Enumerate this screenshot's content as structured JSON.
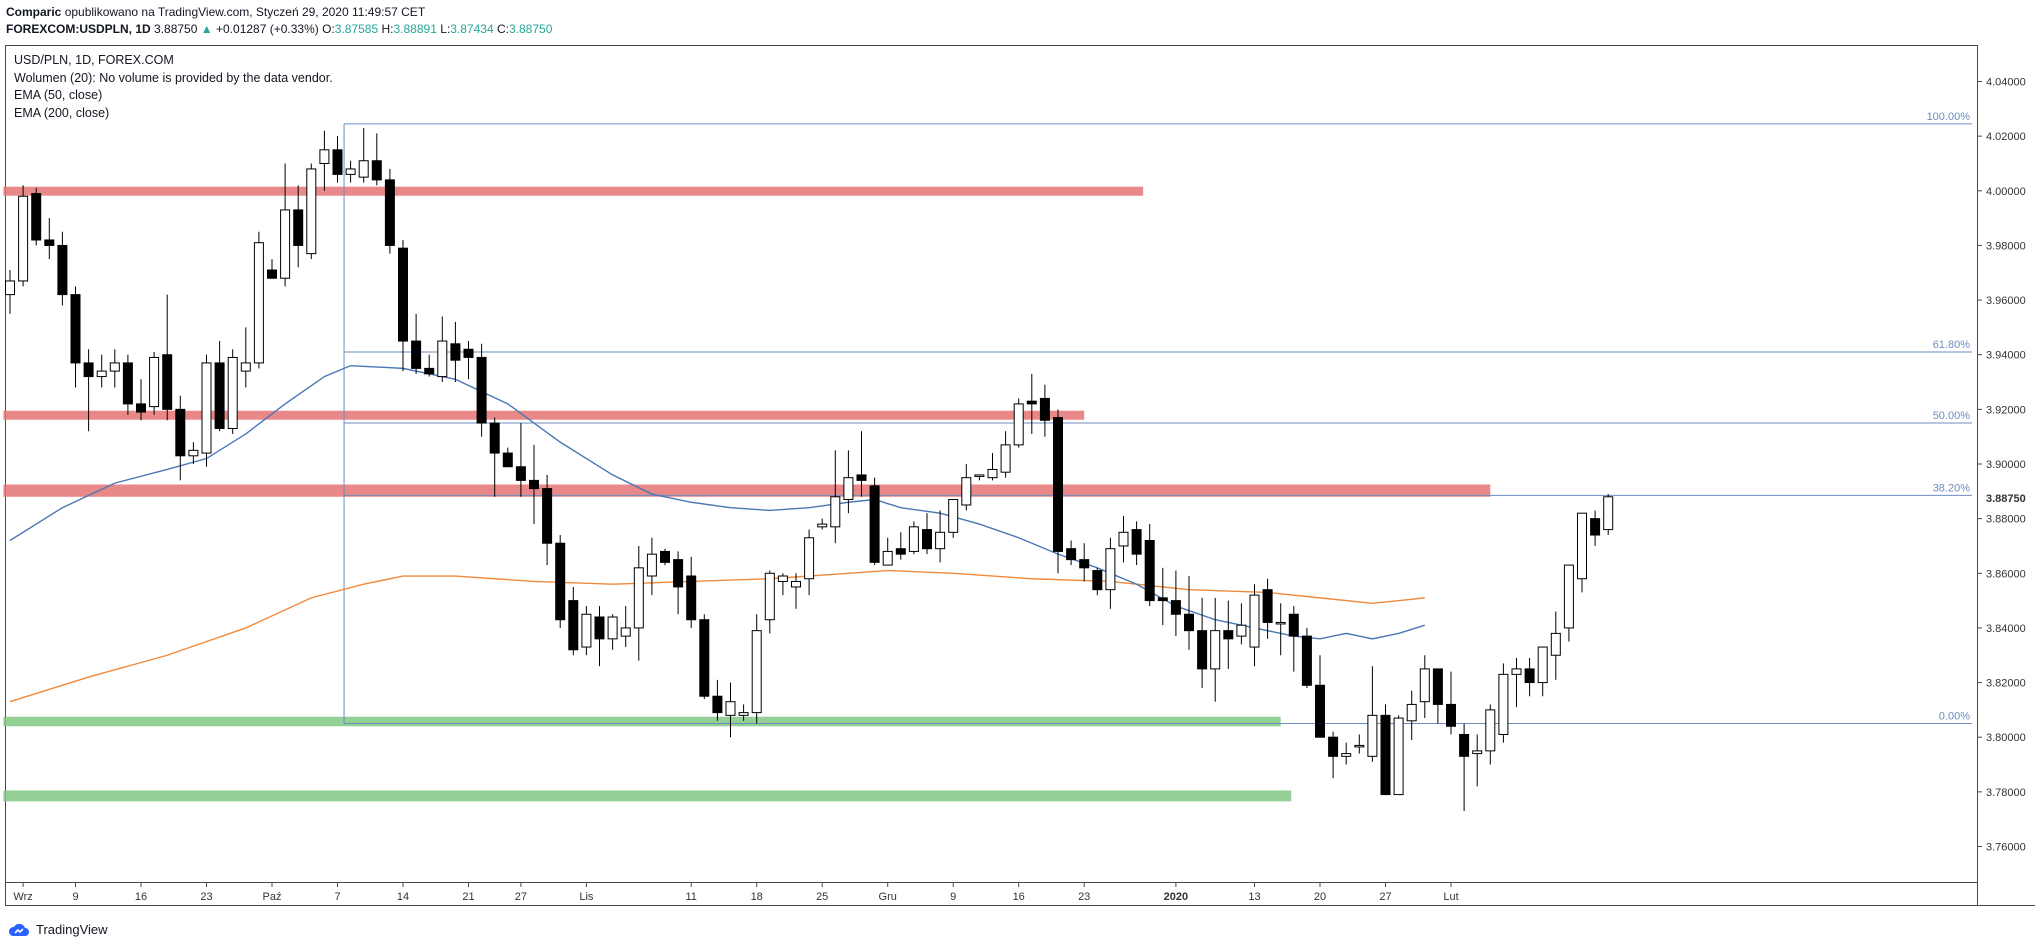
{
  "header": {
    "line1_author": "Comparic",
    "line1_rest": " opublikowano na TradingView.com, Styczeń 29, 2020 11:49:57 CET",
    "symbol": "FOREXCOM:USDPLN, 1D",
    "last": "3.88750",
    "change": "+0.01287 (+0.33%)",
    "o_label": "O:",
    "o": "3.87585",
    "h_label": "H:",
    "h": "3.88891",
    "l_label": "L:",
    "l": "3.87434",
    "c_label": "C:",
    "c": "3.88750"
  },
  "legend": {
    "title": "USD/PLN, 1D, FOREX.COM",
    "volume": "Wolumen (20): No volume is provided by the data vendor.",
    "ema50": "EMA (50, close)",
    "ema200": "EMA (200, close)"
  },
  "footer": {
    "brand": "TradingView"
  },
  "colors": {
    "resistance": "#e57373",
    "support": "#81c784",
    "ema50": "#4a78b5",
    "ema200": "#f08a3c",
    "fib": "#6c8ebf",
    "up_candle": "#ffffff",
    "down_candle": "#000000"
  },
  "chart_data": {
    "type": "candlestick",
    "y_ticks": [
      "4.04000",
      "4.02000",
      "4.00000",
      "3.98000",
      "3.96000",
      "3.94000",
      "3.92000",
      "3.90000",
      "3.88000",
      "3.86000",
      "3.84000",
      "3.82000",
      "3.80000",
      "3.78000",
      "3.76000"
    ],
    "last_price_label": "3.88750",
    "ylim": [
      3.747,
      4.053
    ],
    "x_ticks": [
      {
        "label": "Wrz",
        "i": 1
      },
      {
        "label": "9",
        "i": 5
      },
      {
        "label": "16",
        "i": 10
      },
      {
        "label": "23",
        "i": 15
      },
      {
        "label": "Paź",
        "i": 20
      },
      {
        "label": "7",
        "i": 25
      },
      {
        "label": "14",
        "i": 30
      },
      {
        "label": "21",
        "i": 35
      },
      {
        "label": "27",
        "i": 39
      },
      {
        "label": "Lis",
        "i": 44
      },
      {
        "label": "11",
        "i": 52
      },
      {
        "label": "18",
        "i": 57
      },
      {
        "label": "25",
        "i": 62
      },
      {
        "label": "Gru",
        "i": 67
      },
      {
        "label": "9",
        "i": 72
      },
      {
        "label": "16",
        "i": 77
      },
      {
        "label": "23",
        "i": 82
      },
      {
        "label": "2020",
        "i": 89
      },
      {
        "label": "13",
        "i": 95
      },
      {
        "label": "20",
        "i": 100
      },
      {
        "label": "27",
        "i": 105
      },
      {
        "label": "Lut",
        "i": 110
      }
    ],
    "candles": [
      [
        3.962,
        3.971,
        3.955,
        3.967
      ],
      [
        3.967,
        4.002,
        3.965,
        3.998
      ],
      [
        3.999,
        4.001,
        3.98,
        3.982
      ],
      [
        3.982,
        3.99,
        3.975,
        3.98
      ],
      [
        3.98,
        3.985,
        3.958,
        3.962
      ],
      [
        3.962,
        3.965,
        3.928,
        3.937
      ],
      [
        3.937,
        3.942,
        3.912,
        3.932
      ],
      [
        3.932,
        3.94,
        3.928,
        3.934
      ],
      [
        3.934,
        3.942,
        3.928,
        3.937
      ],
      [
        3.937,
        3.94,
        3.918,
        3.922
      ],
      [
        3.922,
        3.931,
        3.916,
        3.919
      ],
      [
        3.921,
        3.941,
        3.918,
        3.939
      ],
      [
        3.94,
        3.962,
        3.916,
        3.92
      ],
      [
        3.92,
        3.925,
        3.894,
        3.903
      ],
      [
        3.903,
        3.908,
        3.9,
        3.905
      ],
      [
        3.904,
        3.94,
        3.899,
        3.937
      ],
      [
        3.937,
        3.945,
        3.912,
        3.913
      ],
      [
        3.913,
        3.942,
        3.911,
        3.939
      ],
      [
        3.934,
        3.95,
        3.928,
        3.937
      ],
      [
        3.937,
        3.985,
        3.935,
        3.981
      ],
      [
        3.971,
        3.975,
        3.968,
        3.968
      ],
      [
        3.968,
        4.01,
        3.965,
        3.993
      ],
      [
        3.993,
        4.002,
        3.972,
        3.98
      ],
      [
        3.977,
        4.01,
        3.975,
        4.008
      ],
      [
        4.01,
        4.022,
        4.0,
        4.015
      ],
      [
        4.015,
        4.02,
        4.003,
        4.006
      ],
      [
        4.006,
        4.011,
        4.003,
        4.008
      ],
      [
        4.005,
        4.023,
        4.003,
        4.011
      ],
      [
        4.011,
        4.021,
        4.002,
        4.004
      ],
      [
        4.004,
        4.008,
        3.977,
        3.98
      ],
      [
        3.979,
        3.982,
        3.934,
        3.945
      ],
      [
        3.945,
        3.955,
        3.933,
        3.935
      ],
      [
        3.935,
        3.94,
        3.932,
        3.933
      ],
      [
        3.932,
        3.954,
        3.93,
        3.945
      ],
      [
        3.944,
        3.952,
        3.93,
        3.938
      ],
      [
        3.942,
        3.945,
        3.931,
        3.939
      ],
      [
        3.939,
        3.944,
        3.91,
        3.915
      ],
      [
        3.915,
        3.917,
        3.888,
        3.904
      ],
      [
        3.904,
        3.906,
        3.899,
        3.899
      ],
      [
        3.899,
        3.915,
        3.888,
        3.894
      ],
      [
        3.894,
        3.907,
        3.878,
        3.891
      ],
      [
        3.891,
        3.896,
        3.863,
        3.871
      ],
      [
        3.871,
        3.874,
        3.84,
        3.843
      ],
      [
        3.85,
        3.855,
        3.83,
        3.832
      ],
      [
        3.833,
        3.848,
        3.83,
        3.845
      ],
      [
        3.844,
        3.848,
        3.826,
        3.836
      ],
      [
        3.836,
        3.845,
        3.832,
        3.844
      ],
      [
        3.837,
        3.848,
        3.833,
        3.84
      ],
      [
        3.84,
        3.87,
        3.828,
        3.862
      ],
      [
        3.859,
        3.873,
        3.852,
        3.867
      ],
      [
        3.868,
        3.869,
        3.863,
        3.864
      ],
      [
        3.865,
        3.868,
        3.845,
        3.855
      ],
      [
        3.859,
        3.866,
        3.84,
        3.843
      ],
      [
        3.843,
        3.845,
        3.814,
        3.815
      ],
      [
        3.815,
        3.821,
        3.806,
        3.809
      ],
      [
        3.808,
        3.82,
        3.8,
        3.813
      ],
      [
        3.808,
        3.812,
        3.806,
        3.809
      ],
      [
        3.809,
        3.845,
        3.805,
        3.839
      ],
      [
        3.843,
        3.861,
        3.838,
        3.86
      ],
      [
        3.857,
        3.86,
        3.852,
        3.859
      ],
      [
        3.855,
        3.86,
        3.847,
        3.857
      ],
      [
        3.858,
        3.876,
        3.852,
        3.873
      ],
      [
        3.877,
        3.88,
        3.876,
        3.878
      ],
      [
        3.877,
        3.905,
        3.871,
        3.888
      ],
      [
        3.887,
        3.905,
        3.882,
        3.895
      ],
      [
        3.896,
        3.912,
        3.888,
        3.894
      ],
      [
        3.892,
        3.895,
        3.863,
        3.864
      ],
      [
        3.863,
        3.873,
        3.863,
        3.868
      ],
      [
        3.869,
        3.875,
        3.865,
        3.867
      ],
      [
        3.868,
        3.879,
        3.867,
        3.877
      ],
      [
        3.876,
        3.882,
        3.867,
        3.869
      ],
      [
        3.869,
        3.883,
        3.864,
        3.875
      ],
      [
        3.875,
        3.887,
        3.873,
        3.887
      ],
      [
        3.885,
        3.9,
        3.883,
        3.895
      ],
      [
        3.896,
        3.896,
        3.894,
        3.896
      ],
      [
        3.895,
        3.904,
        3.894,
        3.898
      ],
      [
        3.897,
        3.912,
        3.895,
        3.907
      ],
      [
        3.907,
        3.924,
        3.906,
        3.922
      ],
      [
        3.923,
        3.933,
        3.911,
        3.922
      ],
      [
        3.924,
        3.929,
        3.91,
        3.916
      ],
      [
        3.917,
        3.92,
        3.86,
        3.868
      ],
      [
        3.869,
        3.872,
        3.863,
        3.865
      ],
      [
        3.865,
        3.871,
        3.857,
        3.862
      ],
      [
        3.861,
        3.862,
        3.852,
        3.854
      ],
      [
        3.854,
        3.873,
        3.847,
        3.869
      ],
      [
        3.87,
        3.881,
        3.864,
        3.875
      ],
      [
        3.876,
        3.879,
        3.863,
        3.867
      ],
      [
        3.872,
        3.878,
        3.848,
        3.85
      ],
      [
        3.851,
        3.862,
        3.841,
        3.85
      ],
      [
        3.85,
        3.861,
        3.837,
        3.845
      ],
      [
        3.845,
        3.859,
        3.832,
        3.839
      ],
      [
        3.839,
        3.851,
        3.818,
        3.825
      ],
      [
        3.825,
        3.851,
        3.813,
        3.839
      ],
      [
        3.839,
        3.85,
        3.825,
        3.836
      ],
      [
        3.837,
        3.849,
        3.834,
        3.841
      ],
      [
        3.833,
        3.856,
        3.826,
        3.852
      ]
    ],
    "candles_b": [
      [
        3.854,
        3.858,
        3.836,
        3.842
      ],
      [
        3.842,
        3.849,
        3.83,
        3.842
      ],
      [
        3.845,
        3.848,
        3.824,
        3.837
      ],
      [
        3.837,
        3.84,
        3.818,
        3.819
      ],
      [
        3.819,
        3.83,
        3.8,
        3.8
      ],
      [
        3.8,
        3.802,
        3.785,
        3.793
      ],
      [
        3.793,
        3.798,
        3.79,
        3.794
      ],
      [
        3.797,
        3.801,
        3.794,
        3.797
      ],
      [
        3.793,
        3.826,
        3.791,
        3.808
      ],
      [
        3.808,
        3.812,
        3.779,
        3.779
      ],
      [
        3.779,
        3.808,
        3.779,
        3.807
      ],
      [
        3.806,
        3.817,
        3.799,
        3.812
      ],
      [
        3.813,
        3.83,
        3.807,
        3.825
      ],
      [
        3.825,
        3.824,
        3.805,
        3.812
      ],
      [
        3.812,
        3.824,
        3.801,
        3.804
      ],
      [
        3.801,
        3.805,
        3.773,
        3.793
      ],
      [
        3.794,
        3.801,
        3.782,
        3.795
      ],
      [
        3.795,
        3.812,
        3.79,
        3.81
      ],
      [
        3.801,
        3.827,
        3.798,
        3.823
      ],
      [
        3.823,
        3.829,
        3.811,
        3.825
      ],
      [
        3.825,
        3.829,
        3.815,
        3.82
      ],
      [
        3.82,
        3.833,
        3.815,
        3.833
      ],
      [
        3.83,
        3.846,
        3.821,
        3.838
      ],
      [
        3.84,
        3.862,
        3.835,
        3.863
      ],
      [
        3.858,
        3.88,
        3.853,
        3.882
      ],
      [
        3.88,
        3.883,
        3.87,
        3.874
      ],
      [
        3.876,
        3.889,
        3.874,
        3.888
      ]
    ],
    "ema50": [
      [
        0,
        3.872
      ],
      [
        4,
        3.884
      ],
      [
        8,
        3.893
      ],
      [
        12,
        3.898
      ],
      [
        15,
        3.902
      ],
      [
        18,
        3.911
      ],
      [
        21,
        3.922
      ],
      [
        24,
        3.932
      ],
      [
        26,
        3.936
      ],
      [
        30,
        3.935
      ],
      [
        34,
        3.931
      ],
      [
        38,
        3.922
      ],
      [
        42,
        3.908
      ],
      [
        46,
        3.896
      ],
      [
        49,
        3.889
      ],
      [
        52,
        3.886
      ],
      [
        55,
        3.884
      ],
      [
        58,
        3.883
      ],
      [
        61,
        3.884
      ],
      [
        64,
        3.886
      ],
      [
        66,
        3.887
      ],
      [
        68,
        3.884
      ],
      [
        71,
        3.882
      ],
      [
        74,
        3.878
      ],
      [
        77,
        3.873
      ],
      [
        80,
        3.867
      ],
      [
        83,
        3.862
      ],
      [
        86,
        3.856
      ],
      [
        89,
        3.848
      ],
      [
        92,
        3.843
      ],
      [
        95,
        3.84
      ],
      [
        98,
        3.837
      ],
      [
        100,
        3.836
      ],
      [
        102,
        3.838
      ],
      [
        104,
        3.836
      ],
      [
        106,
        3.838
      ],
      [
        108,
        3.841
      ]
    ],
    "ema200": [
      [
        0,
        3.813
      ],
      [
        6,
        3.822
      ],
      [
        12,
        3.83
      ],
      [
        18,
        3.84
      ],
      [
        23,
        3.851
      ],
      [
        27,
        3.856
      ],
      [
        30,
        3.859
      ],
      [
        34,
        3.859
      ],
      [
        40,
        3.857
      ],
      [
        46,
        3.856
      ],
      [
        52,
        3.857
      ],
      [
        58,
        3.858
      ],
      [
        64,
        3.86
      ],
      [
        67,
        3.861
      ],
      [
        72,
        3.86
      ],
      [
        78,
        3.858
      ],
      [
        84,
        3.857
      ],
      [
        90,
        3.854
      ],
      [
        96,
        3.853
      ],
      [
        100,
        3.851
      ],
      [
        104,
        3.849
      ],
      [
        108,
        3.851
      ]
    ],
    "fib_levels": [
      {
        "label": "100.00%",
        "value": 4.0245
      },
      {
        "label": "61.80%",
        "value": 3.941
      },
      {
        "label": "50.00%",
        "value": 3.915
      },
      {
        "label": "38.20%",
        "value": 3.8885
      },
      {
        "label": "0.00%",
        "value": 3.805
      }
    ],
    "zones": [
      {
        "kind": "resistance",
        "low": 3.9985,
        "high": 4.0015,
        "from": -0.5,
        "to": 86.5
      },
      {
        "kind": "resistance",
        "low": 3.9165,
        "high": 3.9195,
        "from": -0.5,
        "to": 82
      },
      {
        "kind": "resistance",
        "low": 3.888,
        "high": 3.8925,
        "from": -0.5,
        "to": 113
      },
      {
        "kind": "support",
        "low": 3.804,
        "high": 3.8075,
        "from": -0.5,
        "to": 97
      },
      {
        "kind": "support",
        "low": 3.7765,
        "high": 3.7805,
        "from": -0.5,
        "to": 97.8
      }
    ]
  }
}
